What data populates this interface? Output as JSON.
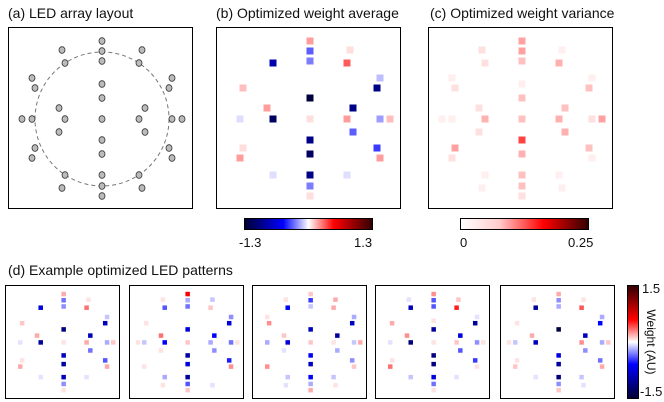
{
  "titles": {
    "a": "(a) LED array layout",
    "b": "(b) Optimized weight average",
    "c": "(c) Optimized weight variance",
    "d": "(d) Example optimized LED patterns"
  },
  "colorbar_avg": {
    "min_label": "-1.3",
    "max_label": "1.3"
  },
  "colorbar_var": {
    "min_label": "0",
    "max_label": "0.25"
  },
  "colorbar_d": {
    "max_label": "1.5",
    "min_label": "-1.5",
    "axis_label": "Weight (AU)"
  },
  "colors": {
    "blue": "#0000ff",
    "white": "#ffffff",
    "red": "#ff0000",
    "dark": "#000000"
  },
  "average_weights": [
    0.3,
    -0.5,
    0,
    0.1,
    -1.0,
    0.5,
    -0.4,
    0,
    -0.2,
    0.2,
    -1.1,
    0,
    0,
    -0.1,
    -0.3,
    0.2,
    -1.2,
    0.3,
    0.1,
    0.3,
    0.3,
    0.1,
    -0.6,
    -1.2,
    0,
    0,
    -0.1,
    -0.1,
    -1.1,
    -0.4,
    0.1,
    0.3,
    -1.1,
    0,
    -0.5,
    -1.3,
    -1.1
  ],
  "variance_weights": [
    0.06,
    0.06,
    0.02,
    0.01,
    0.02,
    0.05,
    0.04,
    0.01,
    0.01,
    0.02,
    0.04,
    0.01,
    0.01,
    0.01,
    0.02,
    0.06,
    0.05,
    0.05,
    0.04,
    0.02,
    0.01,
    0.06,
    0.04,
    0.05,
    0.01,
    0.01,
    0.01,
    0.01,
    0.04,
    0.04,
    0.02,
    0.02,
    0.04,
    0.02,
    0.05,
    0.04,
    0.12
  ],
  "example_patterns": [
    [
      0.3,
      -0.5,
      0,
      0.1,
      -1.0,
      0.5,
      -0.4,
      0,
      -0.2,
      0.2,
      -1.1,
      0,
      0,
      -0.1,
      -0.3,
      0.2,
      -1.2,
      0.3,
      0.1,
      0.3,
      0.3,
      0.1,
      -0.6,
      -1.2,
      0,
      0,
      -0.1,
      -0.1,
      -1.1,
      -0.4,
      0.1,
      0.3,
      -1.1,
      0,
      -0.5,
      -1.3,
      -1.1
    ],
    [
      0.9,
      -0.3,
      0.1,
      -0.2,
      -0.6,
      0.2,
      -0.5,
      0,
      -0.4,
      0.1,
      -1.0,
      0,
      0.1,
      -0.2,
      -0.5,
      0.1,
      -0.9,
      -0.3,
      0.2,
      0.1,
      0.4,
      0,
      -0.8,
      -1.0,
      0.1,
      -0.1,
      -0.3,
      0,
      -1.2,
      -0.6,
      0.2,
      0.5,
      -0.9,
      0.1,
      -0.4,
      -1.0,
      -1.2
    ],
    [
      0.2,
      -0.7,
      0.1,
      0.3,
      -0.9,
      0.3,
      -0.2,
      0.1,
      -0.3,
      0.4,
      -1.1,
      0,
      0,
      -0.3,
      -0.2,
      0.3,
      -1.0,
      0.1,
      0.2,
      0.4,
      0.2,
      0,
      -0.4,
      -1.1,
      -0.1,
      0.1,
      -0.2,
      -0.2,
      -0.9,
      -0.3,
      0.3,
      0.2,
      -1.2,
      -0.1,
      -0.3,
      -1.1,
      -0.9
    ],
    [
      0.4,
      -0.6,
      -0.1,
      0.2,
      -1.1,
      0.8,
      -0.6,
      0,
      -0.1,
      0.3,
      -1.2,
      0.1,
      0,
      -0.1,
      -0.4,
      0.1,
      -1.3,
      0.2,
      0.1,
      0.5,
      0.1,
      0.1,
      -0.7,
      -1.3,
      0,
      0,
      -0.2,
      -0.1,
      -1.0,
      -0.5,
      0.1,
      0.4,
      -1.0,
      0,
      -0.6,
      -1.2,
      -1.3
    ],
    [
      0.3,
      -0.4,
      0.1,
      0.1,
      -1.2,
      0.6,
      -0.3,
      0,
      -0.3,
      0.1,
      -0.9,
      0,
      0.1,
      -0.2,
      -0.3,
      0.2,
      -1.1,
      0.4,
      0,
      0.2,
      0.3,
      0.1,
      -0.5,
      -1.2,
      0,
      -0.1,
      -0.1,
      -0.2,
      -1.3,
      -0.4,
      0.2,
      0.3,
      -1.1,
      0,
      -0.4,
      -1.5,
      -1.0
    ]
  ]
}
